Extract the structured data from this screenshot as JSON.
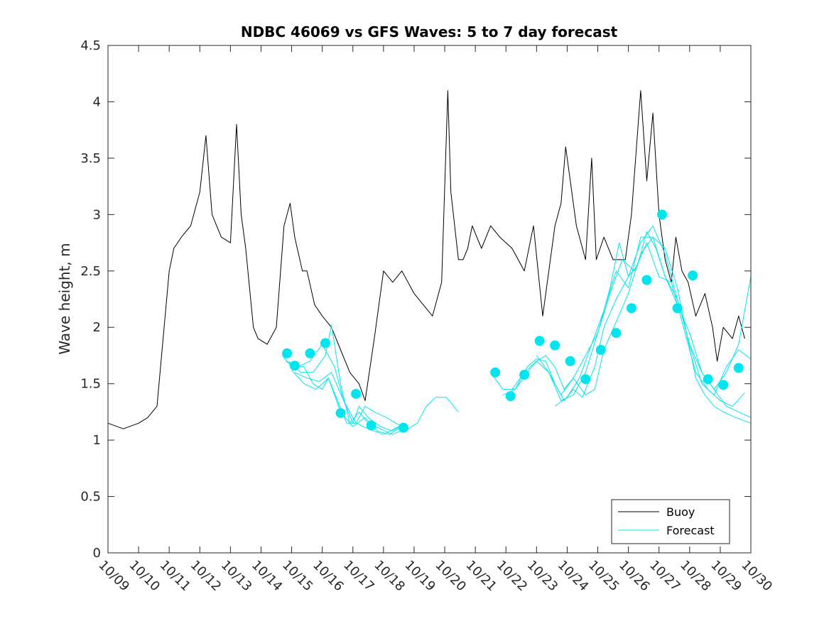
{
  "chart_data": {
    "type": "line",
    "title": "NDBC 46069 vs GFS Waves: 5 to 7 day forecast",
    "xlabel": "",
    "ylabel": "Wave height, m",
    "xlim": [
      0,
      21
    ],
    "ylim": [
      0,
      4.5
    ],
    "x_tick_labels": [
      "10/09",
      "10/10",
      "10/11",
      "10/12",
      "10/13",
      "10/14",
      "10/15",
      "10/16",
      "10/17",
      "10/18",
      "10/19",
      "10/20",
      "10/21",
      "10/22",
      "10/23",
      "10/24",
      "10/25",
      "10/26",
      "10/27",
      "10/28",
      "10/29",
      "10/30"
    ],
    "y_ticks": [
      0,
      0.5,
      1,
      1.5,
      2,
      2.5,
      3,
      3.5,
      4,
      4.5
    ],
    "y_tick_labels": [
      "0",
      "0.5",
      "1",
      "1.5",
      "2",
      "2.5",
      "3",
      "3.5",
      "4",
      "4.5"
    ],
    "x_unit": "days since 10/09",
    "legend": {
      "position": "bottom-right",
      "entries": [
        "Buoy",
        "Forecast"
      ]
    },
    "colors": {
      "buoy": "#000000",
      "forecast": "#00E5EE",
      "axis": "#262626"
    },
    "series": [
      {
        "name": "Buoy",
        "color": "#000000",
        "x": [
          0,
          0.5,
          1,
          1.3,
          1.6,
          2,
          2.15,
          2.4,
          2.7,
          3,
          3.2,
          3.4,
          3.7,
          4,
          4.2,
          4.35,
          4.5,
          4.75,
          4.9,
          5.2,
          5.5,
          5.75,
          5.95,
          6.1,
          6.35,
          6.5,
          6.75,
          7,
          7.3,
          7.6,
          7.9,
          8.2,
          8.4,
          8.7,
          9,
          9.3,
          9.6,
          10,
          10.3,
          10.6,
          10.9,
          11.1,
          11.2,
          11.45,
          11.6,
          11.75,
          11.9,
          12.2,
          12.5,
          12.8,
          13.2,
          13.6,
          13.9,
          14.2,
          14.6,
          14.8,
          14.95,
          15.3,
          15.6,
          15.8,
          15.95,
          16.2,
          16.5,
          16.9,
          17.1,
          17.4,
          17.6,
          17.8,
          18,
          18.2,
          18.4,
          18.55,
          18.75,
          18.95,
          19.2,
          19.5,
          19.75,
          19.9,
          20.1,
          20.4,
          20.6,
          20.8
        ],
        "y": [
          1.15,
          1.1,
          1.15,
          1.2,
          1.3,
          2.5,
          2.7,
          2.8,
          2.9,
          3.2,
          3.7,
          3.0,
          2.8,
          2.75,
          3.8,
          3.0,
          2.7,
          2.0,
          1.9,
          1.85,
          2.0,
          2.9,
          3.1,
          2.8,
          2.5,
          2.5,
          2.2,
          2.1,
          2.0,
          1.8,
          1.6,
          1.5,
          1.35,
          1.9,
          2.5,
          2.4,
          2.5,
          2.3,
          2.2,
          2.1,
          2.4,
          4.1,
          3.2,
          2.6,
          2.6,
          2.7,
          2.9,
          2.7,
          2.9,
          2.8,
          2.7,
          2.5,
          2.9,
          2.1,
          2.9,
          3.1,
          3.6,
          2.9,
          2.6,
          3.5,
          2.6,
          2.8,
          2.6,
          2.6,
          3.0,
          4.1,
          3.3,
          3.9,
          3.0,
          2.6,
          2.4,
          2.8,
          2.5,
          2.4,
          2.1,
          2.3,
          2.0,
          1.7,
          2.0,
          1.9,
          2.1,
          1.9
        ]
      },
      {
        "name": "Forecast",
        "color": "#00E5EE",
        "members": [
          {
            "x": [
              5.7,
              6.0,
              6.4,
              6.7,
              7.0,
              7.2,
              7.5,
              7.8,
              8.1,
              8.4,
              8.7,
              9.1,
              9.4,
              9.8,
              10.1,
              10.4,
              10.7,
              11.05,
              11.45
            ],
            "y": [
              1.75,
              1.65,
              1.65,
              1.5,
              1.45,
              1.55,
              1.35,
              1.15,
              1.15,
              1.3,
              1.25,
              1.2,
              1.15,
              1.1,
              1.15,
              1.3,
              1.38,
              1.38,
              1.25
            ]
          },
          {
            "x": [
              5.8,
              6.2,
              6.6,
              7.0,
              7.4,
              7.7,
              8.0,
              8.2,
              8.5,
              8.9,
              9.3,
              9.7
            ],
            "y": [
              1.7,
              1.65,
              1.7,
              1.85,
              1.65,
              1.35,
              1.15,
              1.3,
              1.2,
              1.12,
              1.08,
              1.15
            ]
          },
          {
            "x": [
              5.9,
              6.3,
              6.7,
              7.1,
              7.3,
              7.6,
              7.9,
              8.2,
              8.5,
              8.9,
              9.3,
              9.7
            ],
            "y": [
              1.7,
              1.6,
              1.6,
              1.75,
              2.02,
              1.5,
              1.15,
              1.25,
              1.15,
              1.1,
              1.05,
              1.1
            ]
          },
          {
            "x": [
              6.0,
              6.4,
              6.8,
              7.2,
              7.6,
              8.0,
              8.4,
              8.8,
              9.2,
              9.6
            ],
            "y": [
              1.62,
              1.5,
              1.45,
              1.55,
              1.25,
              1.12,
              1.2,
              1.08,
              1.05,
              1.12
            ]
          },
          {
            "x": [
              6.1,
              6.5,
              6.9,
              7.3,
              7.7,
              8.1,
              8.5,
              9.0,
              9.5
            ],
            "y": [
              1.6,
              1.55,
              1.52,
              1.6,
              1.35,
              1.15,
              1.1,
              1.05,
              1.12
            ]
          },
          {
            "x": [
              12.5,
              12.9,
              13.3,
              13.7,
              14.0,
              14.3,
              14.6,
              14.9,
              15.2,
              15.6,
              15.9,
              16.2,
              16.6,
              17.0,
              17.4,
              17.8,
              18.2,
              18.6,
              18.9,
              19.2,
              19.5,
              19.8,
              20.1,
              20.5,
              21.0
            ],
            "y": [
              1.6,
              1.45,
              1.45,
              1.6,
              1.7,
              1.75,
              1.65,
              1.45,
              1.55,
              1.4,
              1.45,
              1.8,
              2.05,
              2.3,
              2.65,
              2.8,
              2.7,
              2.35,
              1.95,
              1.55,
              1.4,
              1.3,
              1.25,
              1.2,
              1.15
            ]
          },
          {
            "x": [
              12.9,
              13.3,
              13.7,
              14.0,
              14.3,
              14.6,
              14.9,
              15.2,
              15.5,
              15.9,
              16.2,
              16.6,
              17.0,
              17.4,
              17.8,
              18.2,
              18.6,
              19.0,
              19.4,
              19.8,
              20.2,
              20.6,
              21.0
            ],
            "y": [
              1.4,
              1.45,
              1.65,
              1.72,
              1.7,
              1.5,
              1.35,
              1.45,
              1.38,
              1.65,
              2.0,
              2.25,
              2.45,
              2.75,
              2.9,
              2.65,
              2.25,
              1.85,
              1.5,
              1.4,
              1.65,
              1.8,
              1.72
            ]
          },
          {
            "x": [
              13.2,
              13.6,
              14.0,
              14.4,
              14.8,
              15.2,
              15.6,
              16.0,
              16.4,
              16.7,
              17.0,
              17.3,
              17.6,
              17.9,
              18.2,
              18.6,
              19.0,
              19.4,
              19.8,
              20.2,
              20.6,
              21.0
            ],
            "y": [
              1.45,
              1.6,
              1.7,
              1.6,
              1.4,
              1.55,
              1.75,
              1.95,
              2.35,
              2.75,
              2.45,
              2.55,
              2.85,
              2.7,
              2.45,
              2.2,
              1.95,
              1.6,
              1.45,
              1.6,
              1.85,
              2.45
            ]
          },
          {
            "x": [
              14.0,
              14.4,
              14.8,
              15.2,
              15.6,
              16.0,
              16.4,
              16.8,
              17.2,
              17.6,
              18.0,
              18.4,
              18.8,
              19.2,
              19.6,
              20.0,
              20.4,
              20.8
            ],
            "y": [
              1.75,
              1.6,
              1.35,
              1.4,
              1.6,
              1.95,
              2.3,
              2.6,
              2.5,
              2.75,
              2.45,
              2.4,
              2.0,
              1.6,
              1.45,
              1.35,
              1.3,
              1.42
            ]
          },
          {
            "x": [
              14.6,
              15.0,
              15.4,
              15.8,
              16.2,
              16.6,
              17.0,
              17.4,
              17.8,
              18.2,
              18.6,
              19.0,
              19.4,
              19.8,
              20.2,
              20.6,
              21.0
            ],
            "y": [
              1.3,
              1.38,
              1.55,
              1.85,
              2.15,
              2.5,
              2.35,
              2.8,
              2.8,
              2.45,
              2.25,
              1.85,
              1.6,
              1.45,
              1.3,
              1.25,
              1.2
            ]
          }
        ],
        "markers": {
          "x": [
            5.85,
            6.1,
            6.6,
            7.1,
            7.6,
            8.1,
            8.6,
            9.65,
            12.65,
            13.15,
            13.6,
            14.1,
            14.6,
            15.1,
            15.6,
            16.1,
            16.6,
            17.1,
            17.6,
            18.1,
            18.6,
            19.1,
            19.6,
            20.1,
            20.6
          ],
          "y": [
            1.77,
            1.66,
            1.77,
            1.86,
            1.24,
            1.41,
            1.13,
            1.11,
            1.6,
            1.39,
            1.58,
            1.88,
            1.84,
            1.7,
            1.54,
            1.8,
            1.95,
            2.17,
            2.42,
            3.0,
            2.17,
            2.46,
            1.54,
            1.49,
            1.64
          ]
        }
      }
    ]
  }
}
